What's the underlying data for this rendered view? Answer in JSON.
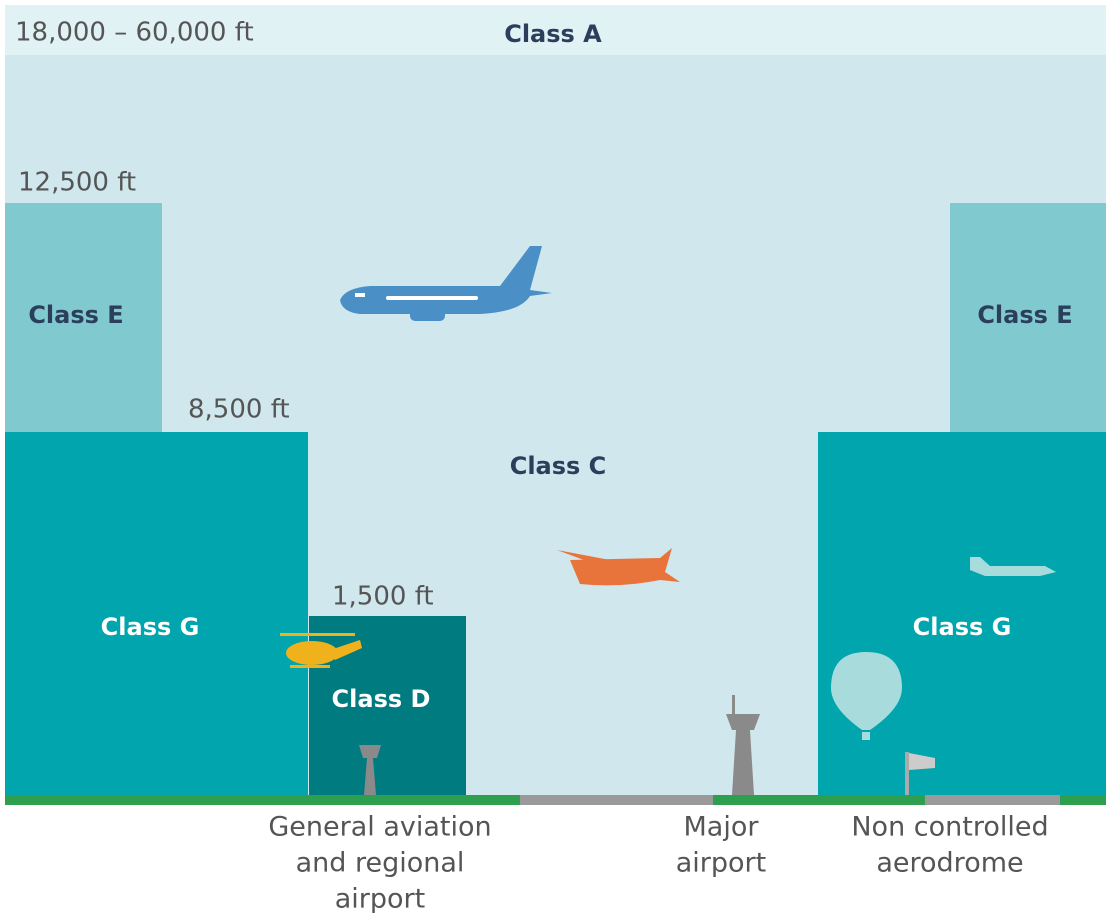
{
  "altitudes": [
    "18,000 – 60,000 ft",
    "12,500 ft",
    "8,500 ft",
    "1,500 ft"
  ],
  "airspaces": [
    "Class A",
    "Class E",
    "Class E",
    "Class C",
    "Class G",
    "Class G",
    "Class D"
  ],
  "ground_labels": [
    [
      "General aviation",
      "and regional",
      "airport"
    ],
    [
      "Major",
      "airport"
    ],
    [
      "Non controlled",
      "aerodrome"
    ]
  ]
}
